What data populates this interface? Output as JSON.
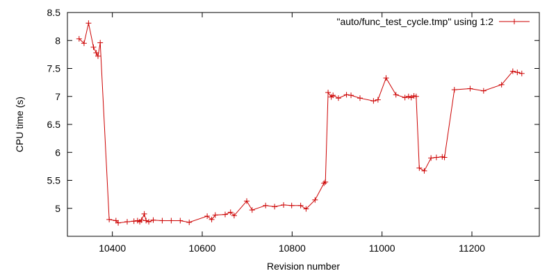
{
  "chart_data": {
    "type": "line",
    "xlabel": "Revision number",
    "ylabel": "CPU time (s)",
    "xlim": [
      10300,
      11350
    ],
    "ylim": [
      4.5,
      8.5
    ],
    "xticks": [
      10400,
      10600,
      10800,
      11000,
      11200
    ],
    "yticks": [
      5,
      5.5,
      6,
      6.5,
      7,
      7.5,
      8,
      8.5
    ],
    "xtick_labels": [
      "10400",
      "10600",
      "10800",
      "11000",
      "11200"
    ],
    "ytick_labels": [
      "5",
      "5.5",
      "6",
      "6.5",
      "7",
      "7.5",
      "8",
      "8.5"
    ],
    "grid": false,
    "legend_position": "top-right",
    "series": [
      {
        "name": "\"auto/func_test_cycle.tmp\" using 1:2",
        "color": "#cc0000",
        "marker": "plus",
        "x": [
          10326,
          10337,
          10347,
          10358,
          10364,
          10368,
          10373,
          10393,
          10408,
          10413,
          10433,
          10448,
          10456,
          10461,
          10465,
          10471,
          10475,
          10481,
          10491,
          10511,
          10531,
          10551,
          10571,
          10611,
          10621,
          10629,
          10651,
          10663,
          10671,
          10699,
          10711,
          10741,
          10761,
          10781,
          10799,
          10819,
          10831,
          10851,
          10871,
          10874,
          10880,
          10887,
          10891,
          10903,
          10921,
          10931,
          10951,
          10981,
          10991,
          11009,
          11031,
          11051,
          11059,
          11065,
          11071,
          11076,
          11083,
          11094,
          11109,
          11121,
          11134,
          11139,
          11161,
          11196,
          11226,
          11266,
          11291,
          11301,
          11311
        ],
        "y": [
          8.03,
          7.95,
          8.31,
          7.88,
          7.78,
          7.72,
          7.96,
          4.8,
          4.78,
          4.74,
          4.76,
          4.77,
          4.78,
          4.76,
          4.79,
          4.9,
          4.78,
          4.76,
          4.79,
          4.78,
          4.78,
          4.78,
          4.75,
          4.86,
          4.8,
          4.88,
          4.89,
          4.93,
          4.87,
          5.13,
          4.97,
          5.05,
          5.03,
          5.06,
          5.05,
          5.05,
          4.99,
          5.15,
          5.45,
          5.47,
          7.07,
          6.99,
          7.02,
          6.97,
          7.03,
          7.02,
          6.97,
          6.92,
          6.94,
          7.33,
          7.03,
          6.98,
          7.0,
          6.98,
          7.01,
          7.0,
          5.72,
          5.67,
          5.9,
          5.91,
          5.92,
          5.91,
          7.12,
          7.14,
          7.1,
          7.21,
          7.45,
          7.43,
          7.41
        ]
      }
    ]
  }
}
